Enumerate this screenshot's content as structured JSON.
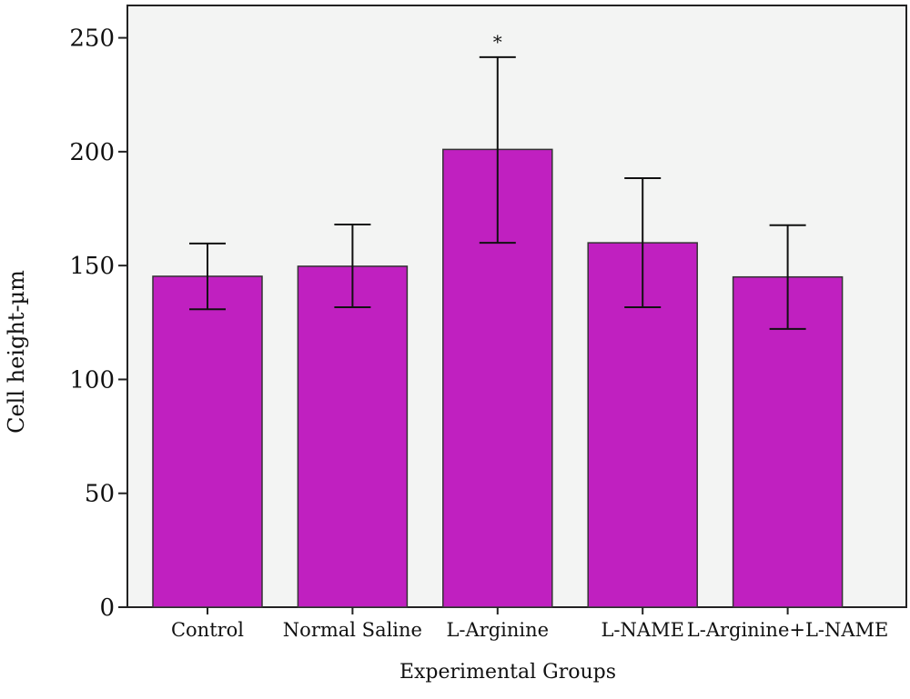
{
  "chart_data": {
    "type": "bar",
    "title": "",
    "xlabel": "Experimental Groups",
    "ylabel": "Cell height-µm",
    "ylim": [
      0,
      250
    ],
    "yticks": [
      0,
      50,
      100,
      150,
      200,
      250
    ],
    "grid": false,
    "categories": [
      "Control",
      "Normal Saline",
      "L-Arginine",
      "L-NAME",
      "L-Arginine+L-NAME"
    ],
    "values": [
      145.3,
      149.7,
      201.0,
      160.0,
      145.0
    ],
    "error_low": [
      130.8,
      131.7,
      160.0,
      131.7,
      122.2
    ],
    "error_high": [
      159.7,
      168.0,
      241.5,
      188.4,
      167.7
    ],
    "annotations": [
      {
        "category": "L-Arginine",
        "text": "*"
      }
    ],
    "colors": {
      "bar": "#c020c0",
      "background": "#f3f4f3",
      "axis": "#222222"
    }
  }
}
